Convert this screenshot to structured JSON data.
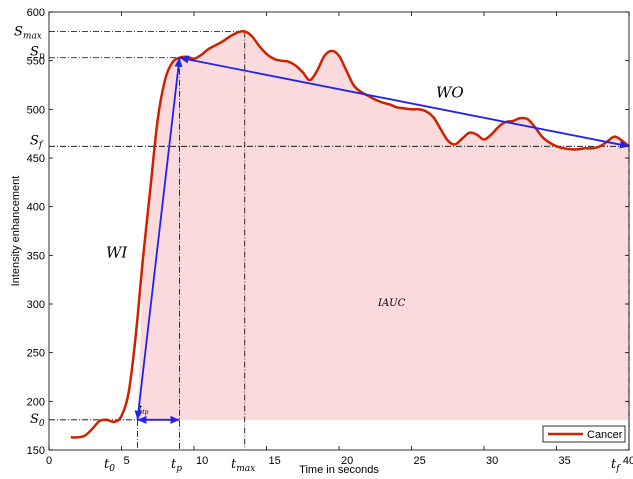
{
  "chart_data": {
    "type": "line",
    "xlabel": "Time in seconds",
    "ylabel": "Intensity enhancement",
    "xlim": [
      0,
      40
    ],
    "ylim": [
      150,
      600
    ],
    "x_ticks": [
      0,
      5,
      10,
      15,
      20,
      25,
      30,
      35,
      40
    ],
    "y_ticks": [
      150,
      200,
      250,
      300,
      350,
      400,
      450,
      500,
      550,
      600
    ],
    "grid": false,
    "legend_position": "bottom-right",
    "series": [
      {
        "name": "Cancer",
        "color": "#cc2200",
        "points": [
          [
            1.5,
            163
          ],
          [
            2.0,
            163
          ],
          [
            2.5,
            165
          ],
          [
            3.0,
            172
          ],
          [
            3.5,
            180
          ],
          [
            4.0,
            181
          ],
          [
            4.5,
            179
          ],
          [
            5.0,
            185
          ],
          [
            5.5,
            210
          ],
          [
            6.0,
            270
          ],
          [
            6.5,
            350
          ],
          [
            7.0,
            420
          ],
          [
            7.5,
            490
          ],
          [
            8.0,
            530
          ],
          [
            8.5,
            548
          ],
          [
            9.0,
            553
          ],
          [
            9.5,
            554
          ],
          [
            10.0,
            552
          ],
          [
            10.5,
            556
          ],
          [
            11.0,
            562
          ],
          [
            11.5,
            566
          ],
          [
            12.0,
            570
          ],
          [
            12.5,
            575
          ],
          [
            13.0,
            579
          ],
          [
            13.5,
            580
          ],
          [
            14.0,
            575
          ],
          [
            14.5,
            565
          ],
          [
            15.0,
            557
          ],
          [
            15.5,
            552
          ],
          [
            16.0,
            550
          ],
          [
            16.5,
            549
          ],
          [
            17.0,
            545
          ],
          [
            17.5,
            538
          ],
          [
            18.0,
            530
          ],
          [
            18.5,
            540
          ],
          [
            19.0,
            555
          ],
          [
            19.5,
            560
          ],
          [
            20.0,
            555
          ],
          [
            20.5,
            540
          ],
          [
            21.0,
            525
          ],
          [
            21.5,
            518
          ],
          [
            22.0,
            514
          ],
          [
            22.5,
            510
          ],
          [
            23.0,
            507
          ],
          [
            23.5,
            505
          ],
          [
            24.0,
            502
          ],
          [
            24.5,
            501
          ],
          [
            25.0,
            500
          ],
          [
            25.5,
            500
          ],
          [
            26.0,
            498
          ],
          [
            26.5,
            492
          ],
          [
            27.0,
            480
          ],
          [
            27.5,
            468
          ],
          [
            28.0,
            464
          ],
          [
            28.5,
            470
          ],
          [
            29.0,
            476
          ],
          [
            29.5,
            474
          ],
          [
            30.0,
            469
          ],
          [
            30.5,
            474
          ],
          [
            31.0,
            482
          ],
          [
            31.5,
            487
          ],
          [
            32.0,
            488
          ],
          [
            32.5,
            491
          ],
          [
            33.0,
            490
          ],
          [
            33.5,
            482
          ],
          [
            34.0,
            472
          ],
          [
            34.5,
            466
          ],
          [
            35.0,
            462
          ],
          [
            35.5,
            460
          ],
          [
            36.0,
            459
          ],
          [
            36.5,
            459
          ],
          [
            37.0,
            460
          ],
          [
            37.5,
            460
          ],
          [
            38.0,
            462
          ],
          [
            38.5,
            467
          ],
          [
            39.0,
            472
          ],
          [
            39.5,
            468
          ],
          [
            40.0,
            462
          ]
        ]
      }
    ],
    "fill_baseline": 181,
    "fill_color": "#fadadd",
    "arrow_color": "#2222ee",
    "arrows": [
      {
        "name": "WI",
        "from": [
          9.0,
          553
        ],
        "to": [
          6.1,
          181
        ]
      },
      {
        "name": "WO",
        "from": [
          9.0,
          553
        ],
        "to": [
          40.0,
          462
        ]
      },
      {
        "name": "t_tp",
        "from": [
          6.1,
          181
        ],
        "to": [
          9.0,
          181
        ]
      }
    ],
    "annotations": {
      "x_markers": [
        {
          "key": "t0",
          "x": 6.1
        },
        {
          "key": "tp",
          "x": 9.0
        },
        {
          "key": "tmax",
          "x": 13.5
        },
        {
          "key": "tf",
          "x": 40.0
        }
      ],
      "y_markers": [
        {
          "key": "S0",
          "y": 181
        },
        {
          "key": "Sp",
          "y": 553
        },
        {
          "key": "Smax",
          "y": 580
        },
        {
          "key": "Sf",
          "y": 462
        }
      ],
      "labels": {
        "WI": "WI",
        "WO": "WO",
        "IAUC": "IAUC",
        "ttp": "t",
        "ttp_sub": "tp",
        "S0": "S",
        "S0_sub": "0",
        "Sp": "S",
        "Sp_sub": "p",
        "Smax": "S",
        "Smax_sub": "max",
        "Sf": "S",
        "Sf_sub": "f",
        "t0": "t",
        "t0_sub": "0",
        "tp": "t",
        "tp_sub": "p",
        "tmax": "t",
        "tmax_sub": "max",
        "tf": "t",
        "tf_sub": "f"
      }
    }
  }
}
